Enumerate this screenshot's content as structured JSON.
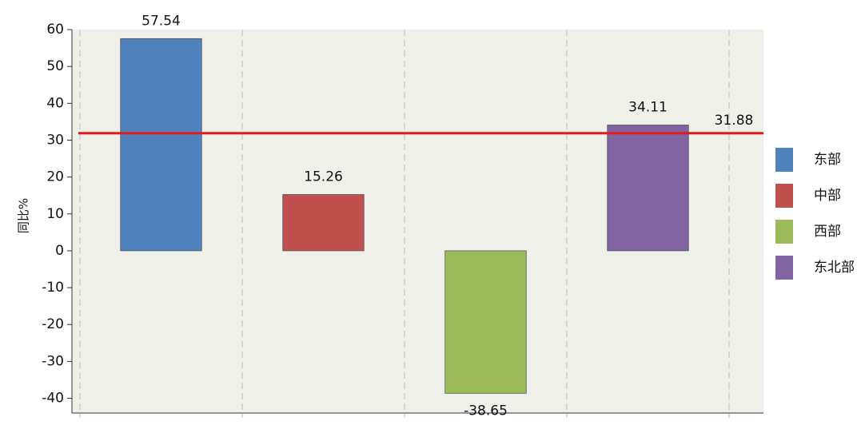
{
  "chart_data": {
    "type": "bar",
    "y_label": "同比%",
    "series": [
      {
        "name": "东部",
        "color": "#4f81bd",
        "values": [
          57.54
        ]
      },
      {
        "name": "中部",
        "color": "#c0504d",
        "values": [
          15.26
        ]
      },
      {
        "name": "西部",
        "color": "#9bbb59",
        "values": [
          -38.65
        ]
      },
      {
        "name": "东北部",
        "color": "#8064a2",
        "values": [
          34.11
        ]
      }
    ],
    "reference_line": {
      "value": 31.88,
      "color": "#e31a1c"
    },
    "ylim": [
      -44,
      60
    ],
    "yticks": [
      -40,
      -30,
      -20,
      -10,
      0,
      10,
      20,
      30,
      40,
      50,
      60
    ],
    "legend": "right"
  }
}
